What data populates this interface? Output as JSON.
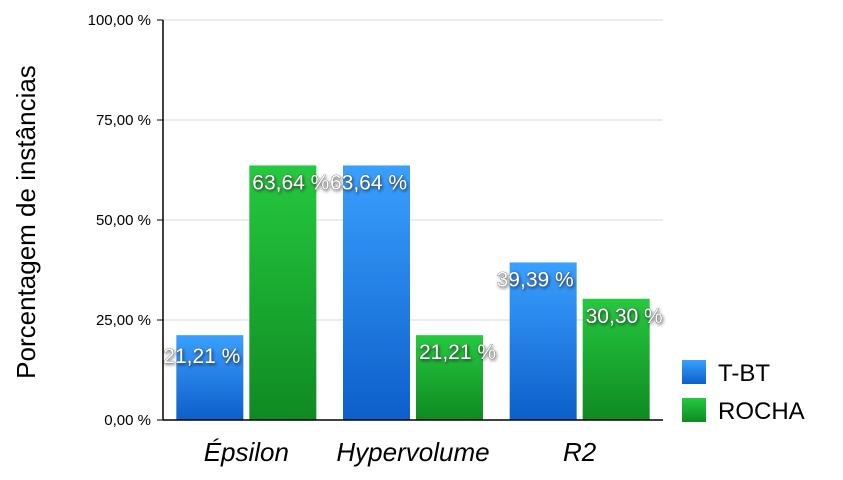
{
  "chart_data": {
    "type": "bar",
    "title": "",
    "xlabel": "",
    "ylabel": "Porcentagem de instâncias",
    "categories": [
      "Épsilon",
      "Hypervolume",
      "R2"
    ],
    "series": [
      {
        "name": "T-BT",
        "values": [
          21.21,
          63.64,
          39.39
        ],
        "labels": [
          "21,21 %",
          "63,64 %",
          "39,39 %"
        ],
        "color": "#1a7fe0"
      },
      {
        "name": "ROCHA",
        "values": [
          63.64,
          21.21,
          30.3
        ],
        "labels": [
          "63,64 %",
          "21,21 %",
          "30,30 %"
        ],
        "color": "#17a82e"
      }
    ],
    "ylim": [
      0,
      100
    ],
    "yticks": [
      0,
      25,
      50,
      75,
      100
    ],
    "ytick_labels": [
      "0,00 %",
      "25,00 %",
      "50,00 %",
      "75,00 %",
      "100,00 %"
    ],
    "grid": true,
    "legend": "right"
  }
}
